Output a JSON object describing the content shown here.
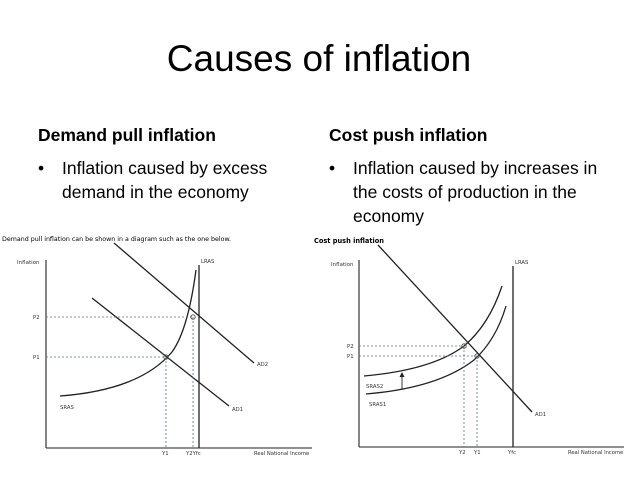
{
  "slide": {
    "title": "Causes of inflation"
  },
  "left": {
    "heading": "Demand pull inflation",
    "bullet": "Inflation caused by excess demand in the economy",
    "diagram": {
      "caption": "Demand pull inflation can be shown in a diagram such as the one below.",
      "y_axis": "Inflation",
      "x_axis": "Real National Income",
      "labels": {
        "p2": "P2",
        "p1": "P1",
        "sras": "SRAS",
        "lras": "LRAS",
        "ad2": "AD2",
        "ad1": "AD1",
        "y1": "Y1",
        "y2yfc": "Y2Yfc"
      }
    }
  },
  "right": {
    "heading": "Cost push inflation",
    "bullet": "Inflation caused by increases in the costs of production in the economy",
    "diagram": {
      "caption": "Cost push inflation",
      "y_axis": "Inflation",
      "x_axis": "Real National Income",
      "labels": {
        "p2": "P2",
        "p1": "P1",
        "sras2": "SRAS2",
        "sras1": "SRAS1",
        "lras": "LRAS",
        "ad1": "AD1",
        "y2": "Y2",
        "y1": "Y1",
        "yfc": "Yfc"
      }
    }
  },
  "colors": {
    "text": "#000000",
    "curve": "#222222",
    "dashed": "#5a6e9c"
  }
}
